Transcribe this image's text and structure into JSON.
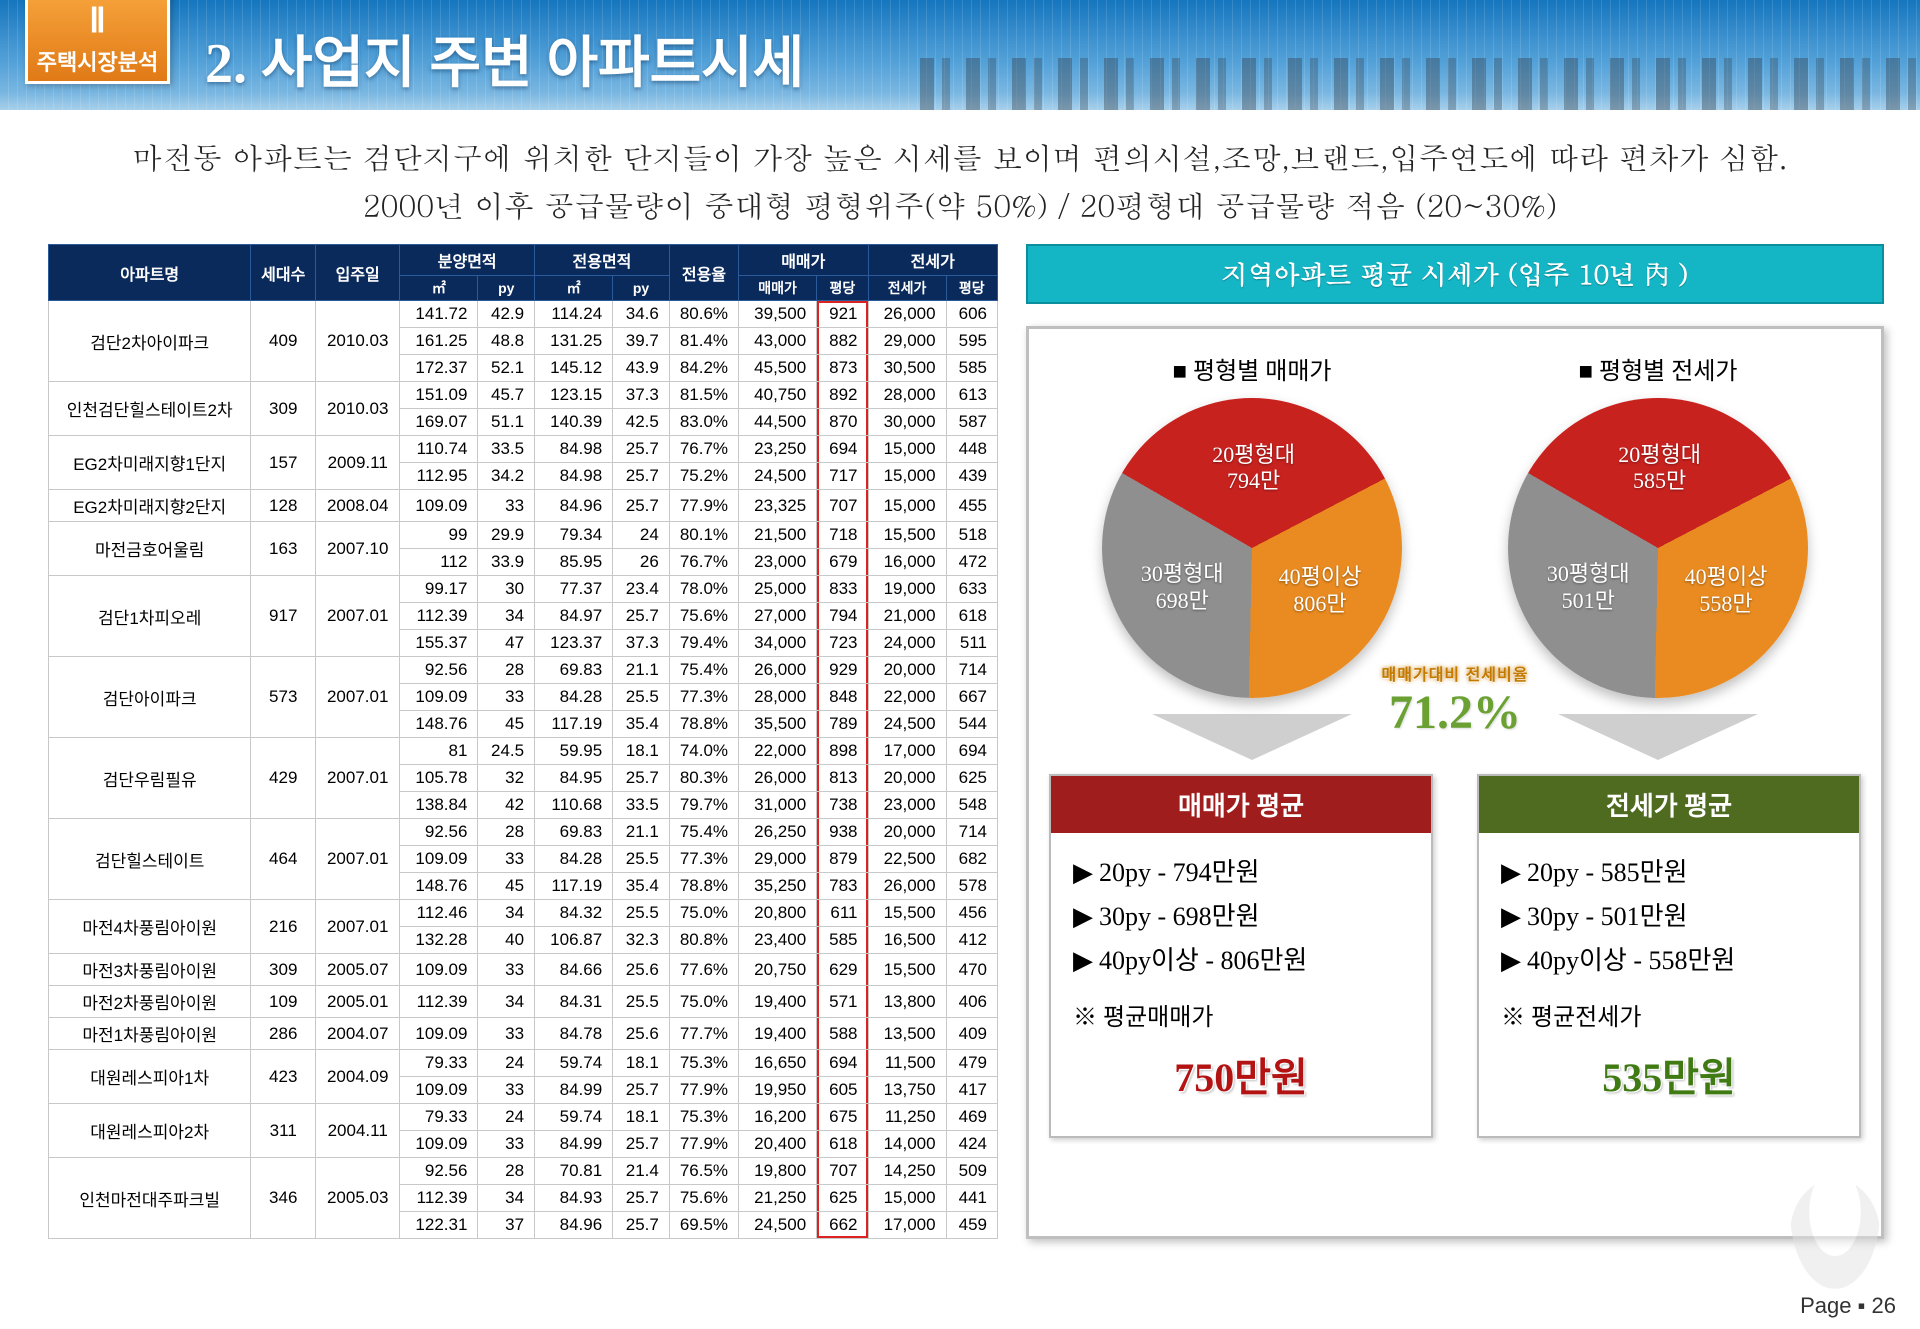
{
  "header": {
    "badge_roman": "Ⅱ",
    "badge_text": "주택시장분석",
    "title": "2. 사업지 주변 아파트시세"
  },
  "summary": {
    "line1": "마전동 아파트는 검단지구에 위치한 단지들이 가장 높은 시세를 보이며 편의시설,조망,브랜드,입주연도에 따라 편차가 심함.",
    "line2": "2000년 이후 공급물량이 중대형 평형위주(약 50%)  /  20평형대 공급물량 적음 (20~30%)"
  },
  "table": {
    "head_top": [
      "아파트명",
      "세대수",
      "입주일",
      "분양면적",
      "전용면적",
      "전용율",
      "매매가",
      "전세가"
    ],
    "head_sub": [
      "㎡",
      "py",
      "㎡",
      "py",
      "매매가",
      "평당",
      "전세가",
      "평당"
    ],
    "groups": [
      {
        "name": "검단2차아이파크",
        "units": 409,
        "movein": "2010.03",
        "rows": [
          [
            141.72,
            42.9,
            114.24,
            34.6,
            "80.6%",
            "39,500",
            921,
            "26,000",
            606
          ],
          [
            161.25,
            48.8,
            131.25,
            39.7,
            "81.4%",
            "43,000",
            882,
            "29,000",
            595
          ],
          [
            172.37,
            52.1,
            145.12,
            43.9,
            "84.2%",
            "45,500",
            873,
            "30,500",
            585
          ]
        ]
      },
      {
        "name": "인천검단힐스테이트2차",
        "units": 309,
        "movein": "2010.03",
        "rows": [
          [
            151.09,
            45.7,
            123.15,
            37.3,
            "81.5%",
            "40,750",
            892,
            "28,000",
            613
          ],
          [
            169.07,
            51.1,
            140.39,
            42.5,
            "83.0%",
            "44,500",
            870,
            "30,000",
            587
          ]
        ]
      },
      {
        "name": "EG2차미래지향1단지",
        "units": 157,
        "movein": "2009.11",
        "rows": [
          [
            110.74,
            33.5,
            84.98,
            25.7,
            "76.7%",
            "23,250",
            694,
            "15,000",
            448
          ],
          [
            112.95,
            34.2,
            84.98,
            25.7,
            "75.2%",
            "24,500",
            717,
            "15,000",
            439
          ]
        ]
      },
      {
        "name": "EG2차미래지향2단지",
        "units": 128,
        "movein": "2008.04",
        "rows": [
          [
            109.09,
            33.0,
            84.96,
            25.7,
            "77.9%",
            "23,325",
            707,
            "15,000",
            455
          ]
        ]
      },
      {
        "name": "마전금호어울림",
        "units": 163,
        "movein": "2007.10",
        "rows": [
          [
            99,
            29.9,
            79.34,
            24.0,
            "80.1%",
            "21,500",
            718,
            "15,500",
            518
          ],
          [
            112,
            33.9,
            85.95,
            26.0,
            "76.7%",
            "23,000",
            679,
            "16,000",
            472
          ]
        ]
      },
      {
        "name": "검단1차피오레",
        "units": 917,
        "movein": "2007.01",
        "rows": [
          [
            99.17,
            30.0,
            77.37,
            23.4,
            "78.0%",
            "25,000",
            833,
            "19,000",
            633
          ],
          [
            112.39,
            34.0,
            84.97,
            25.7,
            "75.6%",
            "27,000",
            794,
            "21,000",
            618
          ],
          [
            155.37,
            47.0,
            123.37,
            37.3,
            "79.4%",
            "34,000",
            723,
            "24,000",
            511
          ]
        ]
      },
      {
        "name": "검단아이파크",
        "units": 573,
        "movein": "2007.01",
        "rows": [
          [
            92.56,
            28.0,
            69.83,
            21.1,
            "75.4%",
            "26,000",
            929,
            "20,000",
            714
          ],
          [
            109.09,
            33.0,
            84.28,
            25.5,
            "77.3%",
            "28,000",
            848,
            "22,000",
            667
          ],
          [
            148.76,
            45.0,
            117.19,
            35.4,
            "78.8%",
            "35,500",
            789,
            "24,500",
            544
          ]
        ]
      },
      {
        "name": "검단우림필유",
        "units": 429,
        "movein": "2007.01",
        "rows": [
          [
            81,
            24.5,
            59.95,
            18.1,
            "74.0%",
            "22,000",
            898,
            "17,000",
            694
          ],
          [
            105.78,
            32.0,
            84.95,
            25.7,
            "80.3%",
            "26,000",
            813,
            "20,000",
            625
          ],
          [
            138.84,
            42.0,
            110.68,
            33.5,
            "79.7%",
            "31,000",
            738,
            "23,000",
            548
          ]
        ]
      },
      {
        "name": "검단힐스테이트",
        "units": 464,
        "movein": "2007.01",
        "rows": [
          [
            92.56,
            28.0,
            69.83,
            21.1,
            "75.4%",
            "26,250",
            938,
            "20,000",
            714
          ],
          [
            109.09,
            33.0,
            84.28,
            25.5,
            "77.3%",
            "29,000",
            879,
            "22,500",
            682
          ],
          [
            148.76,
            45.0,
            117.19,
            35.4,
            "78.8%",
            "35,250",
            783,
            "26,000",
            578
          ]
        ]
      },
      {
        "name": "마전4차풍림아이원",
        "units": 216,
        "movein": "2007.01",
        "rows": [
          [
            112.46,
            34.0,
            84.32,
            25.5,
            "75.0%",
            "20,800",
            611,
            "15,500",
            456
          ],
          [
            132.28,
            40.0,
            106.87,
            32.3,
            "80.8%",
            "23,400",
            585,
            "16,500",
            412
          ]
        ]
      },
      {
        "name": "마전3차풍림아이원",
        "units": 309,
        "movein": "2005.07",
        "rows": [
          [
            109.09,
            33.0,
            84.66,
            25.6,
            "77.6%",
            "20,750",
            629,
            "15,500",
            470
          ]
        ]
      },
      {
        "name": "마전2차풍림아이원",
        "units": 109,
        "movein": "2005.01",
        "rows": [
          [
            112.39,
            34.0,
            84.31,
            25.5,
            "75.0%",
            "19,400",
            571,
            "13,800",
            406
          ]
        ]
      },
      {
        "name": "마전1차풍림아이원",
        "units": 286,
        "movein": "2004.07",
        "rows": [
          [
            109.09,
            33.0,
            84.78,
            25.6,
            "77.7%",
            "19,400",
            588,
            "13,500",
            409
          ]
        ]
      },
      {
        "name": "대원레스피아1차",
        "units": 423,
        "movein": "2004.09",
        "rows": [
          [
            79.33,
            24.0,
            59.74,
            18.1,
            "75.3%",
            "16,650",
            694,
            "11,500",
            479
          ],
          [
            109.09,
            33.0,
            84.99,
            25.7,
            "77.9%",
            "19,950",
            605,
            "13,750",
            417
          ]
        ]
      },
      {
        "name": "대원레스피아2차",
        "units": 311,
        "movein": "2004.11",
        "rows": [
          [
            79.33,
            24.0,
            59.74,
            18.1,
            "75.3%",
            "16,200",
            675,
            "11,250",
            469
          ],
          [
            109.09,
            33.0,
            84.99,
            25.7,
            "77.9%",
            "20,400",
            618,
            "14,000",
            424
          ]
        ]
      },
      {
        "name": "인천마전대주파크빌",
        "units": 346,
        "movein": "2005.03",
        "rows": [
          [
            92.56,
            28.0,
            70.81,
            21.4,
            "76.5%",
            "19,800",
            707,
            "14,250",
            509
          ],
          [
            112.39,
            34.0,
            84.93,
            25.7,
            "75.6%",
            "21,250",
            625,
            "15,000",
            441
          ],
          [
            122.31,
            37.0,
            84.96,
            25.7,
            "69.5%",
            "24,500",
            662,
            "17,000",
            459
          ]
        ]
      }
    ]
  },
  "side": {
    "title": "지역아파트 평균 시세가 (입주 10년 內 )",
    "pie_sale": {
      "title": "■ 평형별 매매가",
      "slices": [
        {
          "label": "20평형대",
          "value": "794만",
          "color": "#c8221f",
          "pct": 34
        },
        {
          "label": "40평이상",
          "value": "806만",
          "color": "#e98b20",
          "pct": 33
        },
        {
          "label": "30평형대",
          "value": "698만",
          "color": "#8f8f8f",
          "pct": 33
        }
      ]
    },
    "pie_rent": {
      "title": "■ 평형별 전세가",
      "slices": [
        {
          "label": "20평형대",
          "value": "585만",
          "color": "#c8221f",
          "pct": 34
        },
        {
          "label": "40평이상",
          "value": "558만",
          "color": "#e98b20",
          "pct": 33
        },
        {
          "label": "30평형대",
          "value": "501만",
          "color": "#8f8f8f",
          "pct": 33
        }
      ]
    },
    "ratio_label": "매매가대비 전세비율",
    "ratio_value": "71.2%",
    "avg_sale": {
      "head": "매매가 평균",
      "lines": [
        "20py  -  794만원",
        "30py  -  698만원",
        "40py이상  -  806만원"
      ],
      "foot": "※ 평균매매가",
      "big": "750만원"
    },
    "avg_rent": {
      "head": "전세가 평균",
      "lines": [
        "20py  -  585만원",
        "30py  -  501만원",
        "40py이상  -  558만원"
      ],
      "foot": "※ 평균전세가",
      "big": "535만원"
    }
  },
  "page": "Page ▪ 26"
}
